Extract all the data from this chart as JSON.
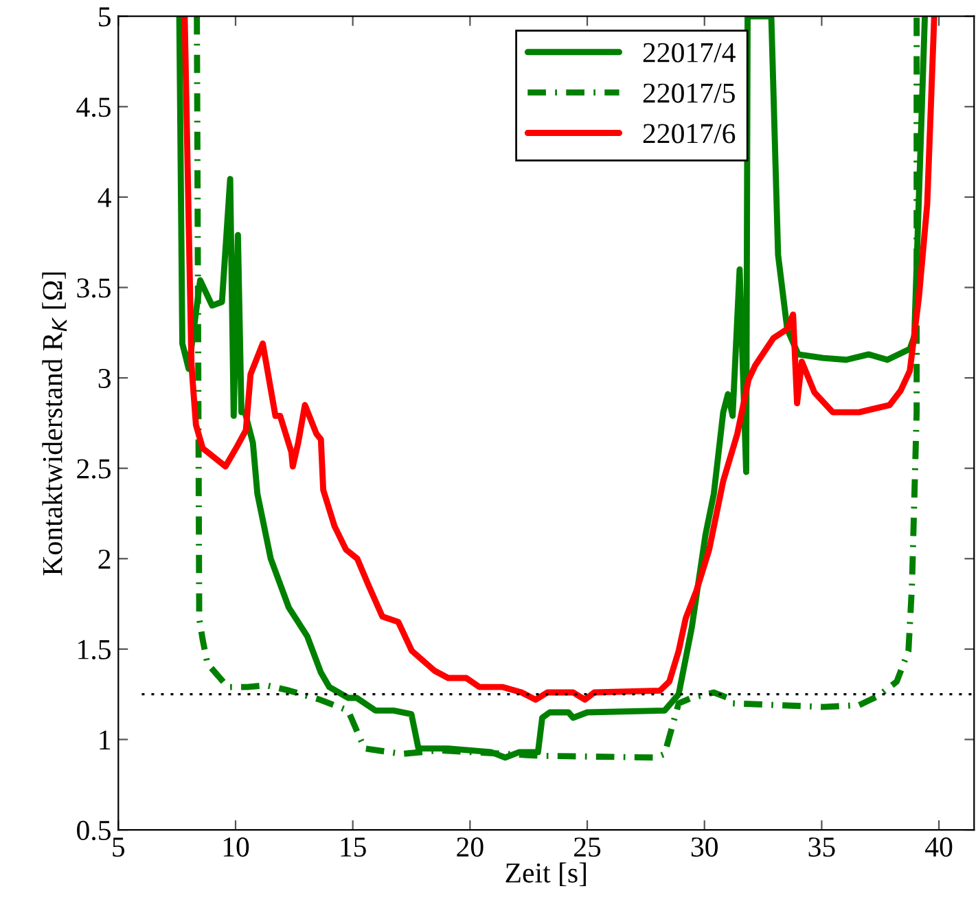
{
  "chart_data": {
    "type": "line",
    "xlabel": "Zeit [s]",
    "ylabel": "Kontaktwiderstand R$_{K}$ [Ω]",
    "xlim": [
      5,
      41.5
    ],
    "ylim": [
      0.5,
      5
    ],
    "xticks": [
      5,
      10,
      15,
      20,
      25,
      30,
      35,
      40
    ],
    "yticks": [
      0.5,
      1,
      1.5,
      2,
      2.5,
      3,
      3.5,
      4,
      4.5,
      5
    ],
    "grid": false,
    "legend": "top",
    "marker": "none",
    "series": [
      {
        "name": "22017/4",
        "color": "#008000",
        "line_style": "solid",
        "x": [
          7.6,
          7.73,
          8.0,
          8.49,
          9.0,
          9.42,
          9.77,
          9.92,
          10.1,
          10.25,
          10.4,
          10.74,
          10.93,
          11.5,
          12.27,
          13.06,
          13.64,
          14.0,
          14.8,
          15.17,
          15.97,
          16.74,
          17.5,
          17.8,
          19.07,
          20.9,
          21.5,
          22.1,
          22.9,
          23.08,
          23.4,
          24.2,
          24.4,
          25.0,
          28.3,
          28.9,
          29.46,
          30.04,
          30.4,
          30.8,
          31.0,
          31.2,
          31.5,
          31.78,
          31.84,
          32.85,
          33.14,
          33.53,
          34.0,
          35.06,
          36.05,
          37.0,
          37.8,
          38.76,
          38.95,
          39.4
        ],
        "values": [
          5,
          3.19,
          3.05,
          3.54,
          3.4,
          3.42,
          4.1,
          2.79,
          3.79,
          2.81,
          2.81,
          2.64,
          2.36,
          2.0,
          1.73,
          1.57,
          1.37,
          1.29,
          1.23,
          1.23,
          1.16,
          1.16,
          1.14,
          0.95,
          0.95,
          0.93,
          0.9,
          0.93,
          0.93,
          1.12,
          1.15,
          1.15,
          1.12,
          1.15,
          1.16,
          1.25,
          1.62,
          2.13,
          2.36,
          2.81,
          2.91,
          2.79,
          3.6,
          2.48,
          5,
          5,
          3.68,
          3.27,
          3.13,
          3.11,
          3.1,
          3.13,
          3.1,
          3.16,
          3.23,
          5
        ]
      },
      {
        "name": "22017/5",
        "color": "#008000",
        "line_style": "dashdot",
        "x": [
          8.35,
          8.45,
          8.6,
          8.8,
          9.67,
          10.5,
          11.3,
          12.3,
          13.6,
          14.8,
          15.2,
          15.5,
          17.1,
          18.7,
          22.9,
          27.9,
          28.3,
          28.6,
          28.9,
          29.45,
          30.4,
          31.0,
          31.2,
          33.14,
          35.08,
          36.6,
          37.4,
          38.2,
          38.7,
          38.85,
          39.05,
          39.05
        ],
        "values": [
          5,
          1.67,
          1.55,
          1.42,
          1.29,
          1.29,
          1.3,
          1.27,
          1.22,
          1.16,
          1.04,
          0.95,
          0.92,
          0.94,
          0.91,
          0.9,
          0.92,
          1.06,
          1.2,
          1.23,
          1.26,
          1.23,
          1.2,
          1.19,
          1.18,
          1.19,
          1.24,
          1.32,
          1.49,
          1.85,
          2.81,
          5
        ]
      },
      {
        "name": "22017/6",
        "color": "#ff0000",
        "line_style": "solid",
        "x": [
          7.83,
          8.12,
          8.31,
          8.6,
          8.8,
          9.57,
          10.06,
          10.44,
          10.64,
          11.16,
          11.7,
          11.9,
          12.38,
          12.44,
          12.67,
          12.96,
          13.45,
          13.64,
          13.74,
          14.22,
          14.71,
          15.19,
          15.68,
          16.26,
          16.94,
          17.52,
          18.49,
          19.07,
          19.84,
          20.4,
          21.4,
          22.2,
          22.8,
          23.3,
          24.4,
          24.9,
          25.3,
          28.1,
          28.5,
          28.9,
          29.2,
          29.65,
          30.2,
          30.8,
          31.4,
          31.88,
          32.17,
          32.94,
          33.53,
          33.78,
          33.95,
          34.15,
          34.69,
          35.47,
          36.6,
          37.9,
          38.37,
          38.76,
          39.15,
          39.5,
          39.8
        ],
        "values": [
          5,
          3.07,
          2.74,
          2.61,
          2.59,
          2.51,
          2.62,
          2.71,
          3.02,
          3.19,
          2.79,
          2.79,
          2.59,
          2.51,
          2.64,
          2.85,
          2.69,
          2.66,
          2.38,
          2.18,
          2.05,
          2.0,
          1.85,
          1.68,
          1.65,
          1.49,
          1.38,
          1.34,
          1.34,
          1.29,
          1.29,
          1.26,
          1.22,
          1.26,
          1.26,
          1.22,
          1.26,
          1.27,
          1.32,
          1.49,
          1.67,
          1.82,
          2.05,
          2.43,
          2.69,
          2.99,
          3.07,
          3.22,
          3.27,
          3.35,
          2.86,
          3.09,
          2.92,
          2.81,
          2.81,
          2.85,
          2.93,
          3.04,
          3.45,
          3.96,
          5
        ]
      },
      {
        "color": "#000000",
        "line_style": "dotted",
        "x": [
          6,
          41.5
        ],
        "values": [
          1.25,
          1.25
        ]
      }
    ]
  }
}
